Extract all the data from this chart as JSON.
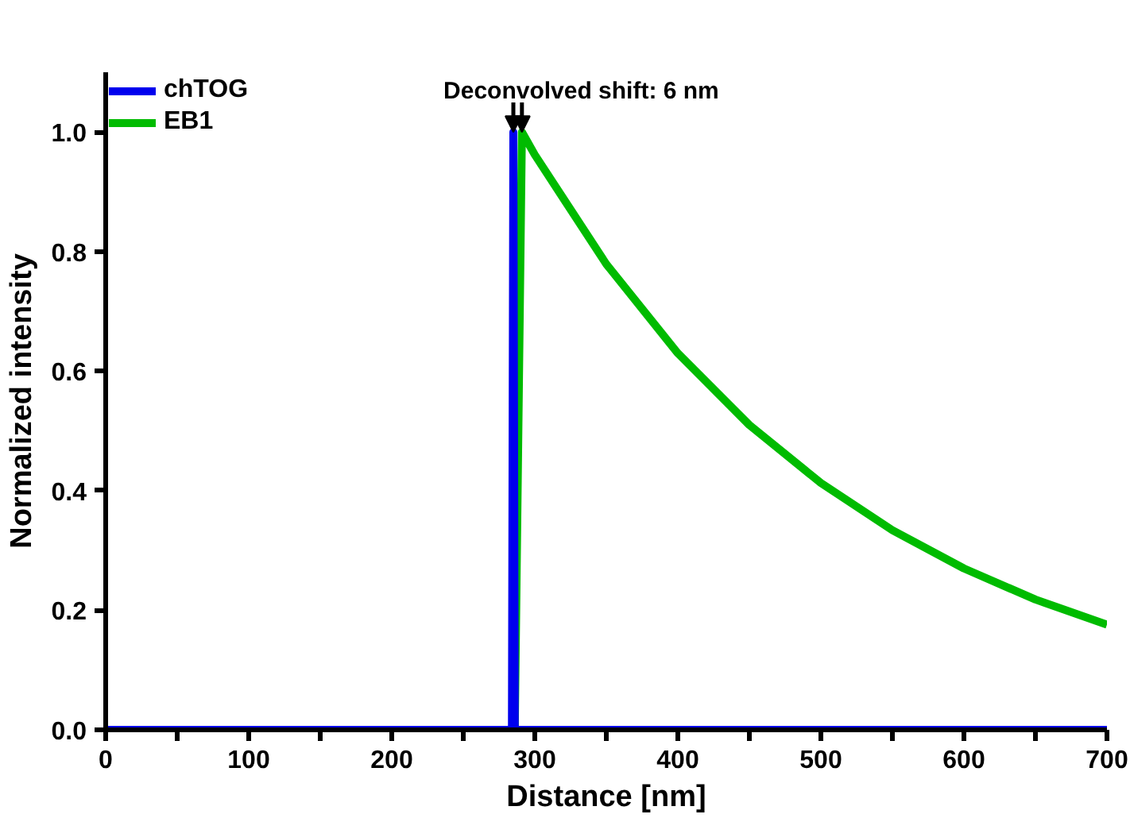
{
  "chart_data": {
    "type": "line",
    "annotations": [
      {
        "text": "Deconvolved shift: 6 nm",
        "x": 288,
        "y": 1.0
      }
    ],
    "xlabel": "Distance [nm]",
    "ylabel": "Normalized intensity",
    "xlim": [
      0,
      700
    ],
    "ylim": [
      0,
      1.1
    ],
    "xticks": [
      0,
      {
        "value": 50,
        "label": null
      },
      100,
      {
        "value": 150,
        "label": null
      },
      200,
      {
        "value": 250,
        "label": null
      },
      300,
      {
        "value": 350,
        "label": null
      },
      400,
      {
        "value": 450,
        "label": null
      },
      500,
      {
        "value": 550,
        "label": null
      },
      600,
      {
        "value": 650,
        "label": null
      },
      700
    ],
    "yticks": [
      {
        "value": 0,
        "label": "0.0"
      },
      0.2,
      0.4,
      0.6,
      0.8,
      {
        "value": 1,
        "label": "1.0"
      }
    ],
    "grid": false,
    "legend": "top left",
    "marker": "none",
    "line_style": "solid",
    "series": [
      {
        "name": "EB1",
        "color": "#00bb00",
        "x": [
          0,
          286,
          291,
          300,
          350,
          400,
          450,
          500,
          550,
          600,
          650,
          700
        ],
        "values": [
          0,
          0,
          1.0,
          0.962,
          0.779,
          0.63,
          0.51,
          0.413,
          0.334,
          0.27,
          0.218,
          0.176
        ]
      },
      {
        "name": "chTOG",
        "color": "#0000ee",
        "x": [
          0,
          284,
          285,
          286,
          700
        ],
        "values": [
          0,
          0,
          1.0,
          0,
          0
        ]
      }
    ]
  }
}
